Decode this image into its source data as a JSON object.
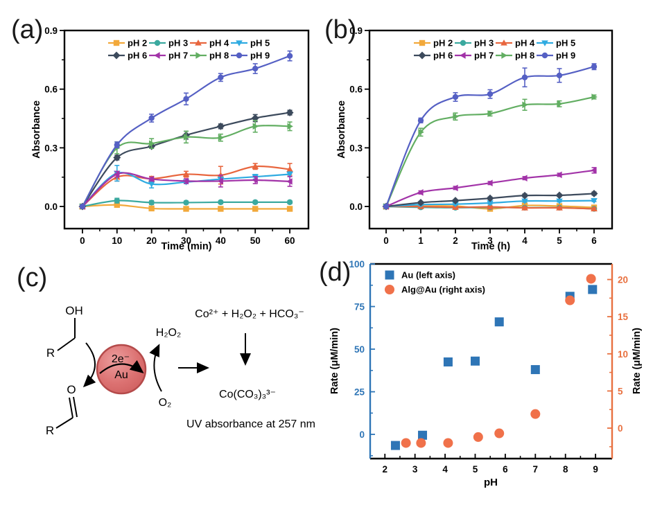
{
  "panels": {
    "a": {
      "label": "(a)"
    },
    "b": {
      "label": "(b)"
    },
    "c": {
      "label": "(c)"
    },
    "d": {
      "label": "(d)"
    }
  },
  "chart_data": [
    {
      "id": "a",
      "type": "line",
      "xlabel": "Time (min)",
      "ylabel": "Absorbance",
      "x": [
        0,
        10,
        20,
        30,
        40,
        50,
        60
      ],
      "xticks": [
        0,
        10,
        20,
        30,
        40,
        50,
        60
      ],
      "yticks": [
        0,
        0.3,
        0.6,
        0.9
      ],
      "ytick_labels": [
        "0.0",
        "0.3",
        "0.6",
        "0.9"
      ],
      "xlim": [
        -5.2,
        65.4
      ],
      "ylim": [
        -0.113,
        0.9
      ],
      "grid": false,
      "legend_position": "top-center-inside",
      "series": [
        {
          "name": "pH 2",
          "color": "#F2A93B",
          "marker": "square",
          "values": [
            0,
            0.008,
            -0.01,
            -0.012,
            -0.012,
            -0.012,
            -0.012
          ],
          "errors": [
            0,
            0.01,
            0.006,
            0.005,
            0.005,
            0.005,
            0.005
          ]
        },
        {
          "name": "pH 3",
          "color": "#3BA99F",
          "marker": "circle",
          "values": [
            0,
            0.03,
            0.02,
            0.02,
            0.022,
            0.022,
            0.022
          ],
          "errors": [
            0,
            0.012,
            0.01,
            0.008,
            0.008,
            0.008,
            0.008
          ]
        },
        {
          "name": "pH 4",
          "color": "#E8663E",
          "marker": "triangle-up",
          "values": [
            0,
            0.15,
            0.142,
            0.165,
            0.16,
            0.205,
            0.19
          ],
          "errors": [
            0,
            0.02,
            0.012,
            0.015,
            0.045,
            0.015,
            0.03
          ]
        },
        {
          "name": "pH 5",
          "color": "#2FABE1",
          "marker": "triangle-down",
          "values": [
            0,
            0.17,
            0.115,
            0.125,
            0.14,
            0.152,
            0.165
          ],
          "errors": [
            0,
            0.04,
            0.02,
            0.008,
            0.01,
            0.012,
            0.012
          ]
        },
        {
          "name": "pH 6",
          "color": "#3C4A5C",
          "marker": "diamond",
          "values": [
            0,
            0.25,
            0.308,
            0.365,
            0.41,
            0.452,
            0.48
          ],
          "errors": [
            0,
            0.012,
            0.01,
            0.02,
            0.012,
            0.018,
            0.012
          ]
        },
        {
          "name": "pH 7",
          "color": "#A233A8",
          "marker": "triangle-left",
          "values": [
            0,
            0.165,
            0.14,
            0.13,
            0.13,
            0.135,
            0.128
          ],
          "errors": [
            0,
            0.015,
            0.01,
            0.012,
            0.03,
            0.018,
            0.025
          ]
        },
        {
          "name": "pH 8",
          "color": "#62AE62",
          "marker": "triangle-right",
          "values": [
            0,
            0.3,
            0.322,
            0.355,
            0.352,
            0.41,
            0.41
          ],
          "errors": [
            0,
            0.03,
            0.025,
            0.03,
            0.018,
            0.03,
            0.022
          ]
        },
        {
          "name": "pH 9",
          "color": "#5560C4",
          "marker": "circle",
          "values": [
            0,
            0.315,
            0.452,
            0.55,
            0.66,
            0.705,
            0.77
          ],
          "errors": [
            0,
            0.015,
            0.02,
            0.03,
            0.02,
            0.025,
            0.025
          ]
        }
      ]
    },
    {
      "id": "b",
      "type": "line",
      "xlabel": "Time (h)",
      "ylabel": "Absorbance",
      "x": [
        0,
        1,
        2,
        3,
        4,
        5,
        6
      ],
      "xticks": [
        0,
        1,
        2,
        3,
        4,
        5,
        6
      ],
      "yticks": [
        0,
        0.3,
        0.6,
        0.9
      ],
      "ytick_labels": [
        "0.0",
        "0.3",
        "0.6",
        "0.9"
      ],
      "xlim": [
        -0.48,
        6.52
      ],
      "ylim": [
        -0.113,
        0.9
      ],
      "grid": false,
      "legend_position": "top-center-inside",
      "series": [
        {
          "name": "pH 2",
          "color": "#F2A93B",
          "marker": "square",
          "values": [
            0,
            0.002,
            0.002,
            -0.012,
            0.005,
            0.002,
            -0.005
          ],
          "errors": [
            0,
            0.006,
            0.005,
            0.006,
            0.005,
            0.005,
            0.005
          ]
        },
        {
          "name": "pH 3",
          "color": "#3BA99F",
          "marker": "circle",
          "values": [
            0,
            -0.004,
            -0.006,
            -0.004,
            -0.006,
            -0.006,
            -0.012
          ],
          "errors": [
            0,
            0.005,
            0.005,
            0.005,
            0.005,
            0.005,
            0.005
          ]
        },
        {
          "name": "pH 4",
          "color": "#E8663E",
          "marker": "triangle-up",
          "values": [
            0,
            0,
            -0.004,
            -0.002,
            -0.007,
            -0.007,
            -0.012
          ],
          "errors": [
            0,
            0.005,
            0.005,
            0.005,
            0.005,
            0.005,
            0.005
          ]
        },
        {
          "name": "pH 5",
          "color": "#2FABE1",
          "marker": "triangle-down",
          "values": [
            0,
            0.01,
            0.012,
            0.018,
            0.028,
            0.028,
            0.03
          ],
          "errors": [
            0,
            0.006,
            0.005,
            0.006,
            0.006,
            0.005,
            0.005
          ]
        },
        {
          "name": "pH 6",
          "color": "#3C4A5C",
          "marker": "diamond",
          "values": [
            0,
            0.02,
            0.03,
            0.042,
            0.056,
            0.057,
            0.066
          ],
          "errors": [
            0,
            0.006,
            0.005,
            0.006,
            0.008,
            0.006,
            0.008
          ]
        },
        {
          "name": "pH 7",
          "color": "#A233A8",
          "marker": "triangle-left",
          "values": [
            0,
            0.072,
            0.095,
            0.12,
            0.145,
            0.162,
            0.185
          ],
          "errors": [
            0,
            0.008,
            0.008,
            0.008,
            0.008,
            0.008,
            0.014
          ]
        },
        {
          "name": "pH 8",
          "color": "#62AE62",
          "marker": "triangle-right",
          "values": [
            0,
            0.38,
            0.46,
            0.475,
            0.52,
            0.525,
            0.56
          ],
          "errors": [
            0,
            0.02,
            0.018,
            0.012,
            0.028,
            0.015,
            0.01
          ]
        },
        {
          "name": "pH 9",
          "color": "#5560C4",
          "marker": "circle",
          "values": [
            0,
            0.44,
            0.56,
            0.575,
            0.66,
            0.67,
            0.715
          ],
          "errors": [
            0,
            0.012,
            0.022,
            0.022,
            0.048,
            0.035,
            0.015
          ]
        }
      ]
    },
    {
      "id": "d",
      "type": "scatter",
      "xlabel": "pH",
      "ylabel_left": "Rate (μM/min)",
      "ylabel_right": "Rate (μM/min)",
      "xticks": [
        2,
        3,
        4,
        5,
        6,
        7,
        8,
        9
      ],
      "yticks_left": [
        0,
        25,
        50,
        75,
        100
      ],
      "yticks_right": [
        0,
        5,
        10,
        15,
        20
      ],
      "xlim": [
        1.51,
        9.55
      ],
      "ylim_left": [
        -14.2,
        100
      ],
      "ylim_right": [
        -4.1,
        22.1
      ],
      "axis_color_left": "#2E75B6",
      "axis_color_right": "#E8703F",
      "grid": false,
      "legend_position": "top-left-inside",
      "series": [
        {
          "name": "Au (left axis)",
          "axis": "left",
          "color": "#2E75B6",
          "marker": "square",
          "x": [
            2.35,
            3.25,
            4.1,
            5.0,
            5.8,
            7.0,
            8.15,
            8.9
          ],
          "y": [
            -6.5,
            -0.5,
            42.5,
            43,
            66,
            38,
            81,
            85
          ]
        },
        {
          "name": "Alg@Au (right axis)",
          "axis": "right",
          "color": "#F0714A",
          "marker": "circle",
          "x": [
            2.7,
            3.2,
            4.1,
            5.1,
            5.8,
            7.0,
            8.15,
            8.85
          ],
          "y": [
            -2.0,
            -2.0,
            -2.0,
            -1.2,
            -0.7,
            1.9,
            17.2,
            20.1
          ]
        }
      ]
    }
  ],
  "diagram": {
    "oh": "OH",
    "r_top": "R",
    "o": "O",
    "r_bottom": "R",
    "electrons": "2e⁻",
    "catalyst": "Au",
    "h2o2": "H₂O₂",
    "o2": "O₂",
    "reagents": "Co²⁺ + H₂O₂ + HCO₃⁻",
    "product": "Co(CO₃)₃³⁻",
    "note": "UV absorbance at 257 nm"
  }
}
